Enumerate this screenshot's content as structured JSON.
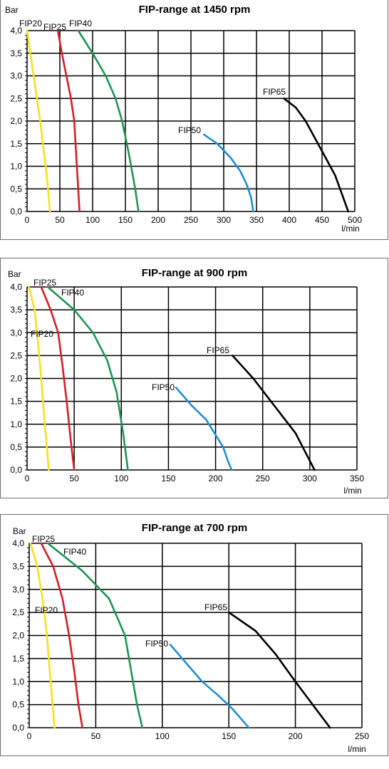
{
  "chart_data": [
    {
      "type": "line",
      "title": "FIP-range at 1450 rpm",
      "ylabel": "Bar",
      "xlabel": "l/min",
      "xlim": [
        0,
        500
      ],
      "ylim": [
        0,
        4
      ],
      "xticks": [
        "0",
        "50",
        "100",
        "150",
        "200",
        "250",
        "300",
        "350",
        "400",
        "450",
        "500"
      ],
      "yticks": [
        "0,0",
        "0,5",
        "1,0",
        "1,5",
        "2,0",
        "2,5",
        "3,0",
        "3,5",
        "4,0"
      ],
      "grid": true,
      "series": [
        {
          "name": "FIP20",
          "color": "#f5e21d",
          "x": [
            0,
            10,
            20,
            30,
            35
          ],
          "y": [
            4.0,
            3.0,
            2.0,
            0.8,
            0.0
          ]
        },
        {
          "name": "FIP25",
          "color": "#d41f26",
          "x": [
            47,
            53,
            60,
            67,
            72,
            76,
            80
          ],
          "y": [
            4.0,
            3.5,
            3.0,
            2.5,
            2.0,
            1.0,
            0.0
          ]
        },
        {
          "name": "FIP40",
          "color": "#1d9553",
          "x": [
            78,
            100,
            120,
            135,
            145,
            155,
            165,
            170
          ],
          "y": [
            4.0,
            3.5,
            3.0,
            2.5,
            2.0,
            1.3,
            0.5,
            0.0
          ]
        },
        {
          "name": "FIP50",
          "color": "#1f8fd1",
          "x": [
            270,
            290,
            310,
            325,
            335,
            342,
            345
          ],
          "y": [
            1.7,
            1.5,
            1.2,
            0.9,
            0.6,
            0.3,
            0.0
          ]
        },
        {
          "name": "FIP65",
          "color": "#000000",
          "x": [
            392,
            410,
            425,
            440,
            455,
            470,
            480,
            490
          ],
          "y": [
            2.5,
            2.3,
            2.0,
            1.6,
            1.2,
            0.8,
            0.4,
            0.0
          ]
        }
      ]
    },
    {
      "type": "line",
      "title": "FIP-range at 900 rpm",
      "ylabel": "Bar",
      "xlabel": "l/min",
      "xlim": [
        0,
        350
      ],
      "ylim": [
        0,
        4
      ],
      "xticks": [
        "0",
        "50",
        "100",
        "150",
        "200",
        "250",
        "300",
        "350"
      ],
      "yticks": [
        "0,0",
        "0,5",
        "1,0",
        "1,5",
        "2,0",
        "2,5",
        "3,0",
        "3,5",
        "4,0"
      ],
      "grid": true,
      "series": [
        {
          "name": "FIP20",
          "color": "#f5e21d",
          "x": [
            2,
            8,
            12,
            15,
            18,
            21,
            23
          ],
          "y": [
            4.0,
            3.5,
            2.7,
            2.0,
            1.2,
            0.5,
            0.0
          ]
        },
        {
          "name": "FIP25",
          "color": "#d41f26",
          "x": [
            15,
            25,
            33,
            38,
            42,
            46,
            50
          ],
          "y": [
            4.0,
            3.5,
            3.0,
            2.2,
            1.5,
            0.7,
            0.0
          ]
        },
        {
          "name": "FIP40",
          "color": "#1d9553",
          "x": [
            22,
            50,
            70,
            85,
            95,
            102,
            107
          ],
          "y": [
            4.0,
            3.5,
            3.0,
            2.4,
            1.7,
            0.8,
            0.0
          ]
        },
        {
          "name": "FIP50",
          "color": "#1f8fd1",
          "x": [
            158,
            175,
            190,
            202,
            208,
            213,
            217
          ],
          "y": [
            1.8,
            1.4,
            1.1,
            0.7,
            0.5,
            0.2,
            0.0
          ]
        },
        {
          "name": "FIP65",
          "color": "#000000",
          "x": [
            218,
            240,
            255,
            270,
            285,
            295,
            305
          ],
          "y": [
            2.5,
            2.0,
            1.6,
            1.2,
            0.8,
            0.4,
            0.0
          ]
        }
      ]
    },
    {
      "type": "line",
      "title": "FIP-range at 700 rpm",
      "ylabel": "Bar",
      "xlabel": "l/min",
      "xlim": [
        0,
        250
      ],
      "ylim": [
        0,
        4
      ],
      "xticks": [
        "0",
        "50",
        "100",
        "150",
        "200",
        "250"
      ],
      "yticks": [
        "0,0",
        "0,5",
        "1,0",
        "1,5",
        "2,0",
        "2,5",
        "3,0",
        "3,5",
        "4,0"
      ],
      "grid": true,
      "series": [
        {
          "name": "FIP20",
          "color": "#f5e21d",
          "x": [
            1,
            6,
            10,
            13,
            15,
            17,
            19
          ],
          "y": [
            4.0,
            3.5,
            2.8,
            2.1,
            1.4,
            0.7,
            0.0
          ]
        },
        {
          "name": "FIP25",
          "color": "#d41f26",
          "x": [
            9,
            18,
            25,
            30,
            34,
            37,
            40
          ],
          "y": [
            4.0,
            3.5,
            2.8,
            2.0,
            1.2,
            0.5,
            0.0
          ]
        },
        {
          "name": "FIP40",
          "color": "#1d9553",
          "x": [
            14,
            40,
            60,
            72,
            78,
            81,
            85
          ],
          "y": [
            4.0,
            3.4,
            2.8,
            2.0,
            1.0,
            0.5,
            0.0
          ]
        },
        {
          "name": "FIP50",
          "color": "#1f8fd1",
          "x": [
            106,
            118,
            130,
            142,
            153,
            165
          ],
          "y": [
            1.8,
            1.4,
            1.0,
            0.7,
            0.4,
            0.0
          ]
        },
        {
          "name": "FIP65",
          "color": "#000000",
          "x": [
            150,
            170,
            185,
            200,
            213,
            226
          ],
          "y": [
            2.5,
            2.1,
            1.6,
            1.0,
            0.5,
            0.0
          ]
        }
      ]
    }
  ]
}
